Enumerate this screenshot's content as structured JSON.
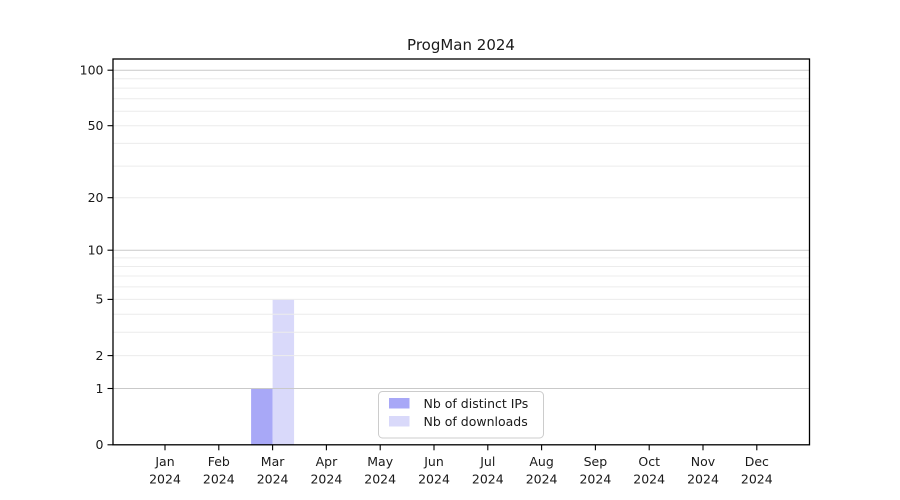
{
  "title": "ProgMan 2024",
  "chart_data": {
    "type": "bar",
    "title": "ProgMan 2024",
    "categories_month": [
      "Jan",
      "Feb",
      "Mar",
      "Apr",
      "May",
      "Jun",
      "Jul",
      "Aug",
      "Sep",
      "Oct",
      "Nov",
      "Dec"
    ],
    "categories_year": "2024",
    "series": [
      {
        "name": "Nb of distinct IPs",
        "color": "#a8a8f7",
        "values": [
          0,
          0,
          1,
          0,
          0,
          0,
          0,
          0,
          0,
          0,
          0,
          0
        ]
      },
      {
        "name": "Nb of downloads",
        "color": "#d9d9fa",
        "values": [
          0,
          0,
          5,
          0,
          0,
          0,
          0,
          0,
          0,
          0,
          0,
          0
        ]
      }
    ],
    "yscale": "log1p",
    "ylim": [
      0,
      115
    ],
    "ytick_values": [
      0,
      1,
      2,
      5,
      10,
      20,
      50,
      100
    ],
    "major_gridline_values": [
      1,
      10,
      100
    ],
    "minor_gridline_values": [
      2,
      3,
      4,
      5,
      6,
      7,
      8,
      9,
      20,
      30,
      40,
      50,
      60,
      70,
      80,
      90
    ],
    "grid": true,
    "legend_position": "lower center",
    "legend_entries": [
      "Nb of distinct IPs",
      "Nb of downloads"
    ]
  },
  "colors": {
    "background": "#ffffff",
    "axis": "#000000",
    "text": "#1a1a1a",
    "major_grid": "#c9c9c9",
    "minor_grid": "#ececec",
    "legend_border": "#cccccc",
    "legend_background": "#ffffff",
    "series_distinct_ips": "#a8a8f7",
    "series_downloads": "#d9d9fa"
  }
}
